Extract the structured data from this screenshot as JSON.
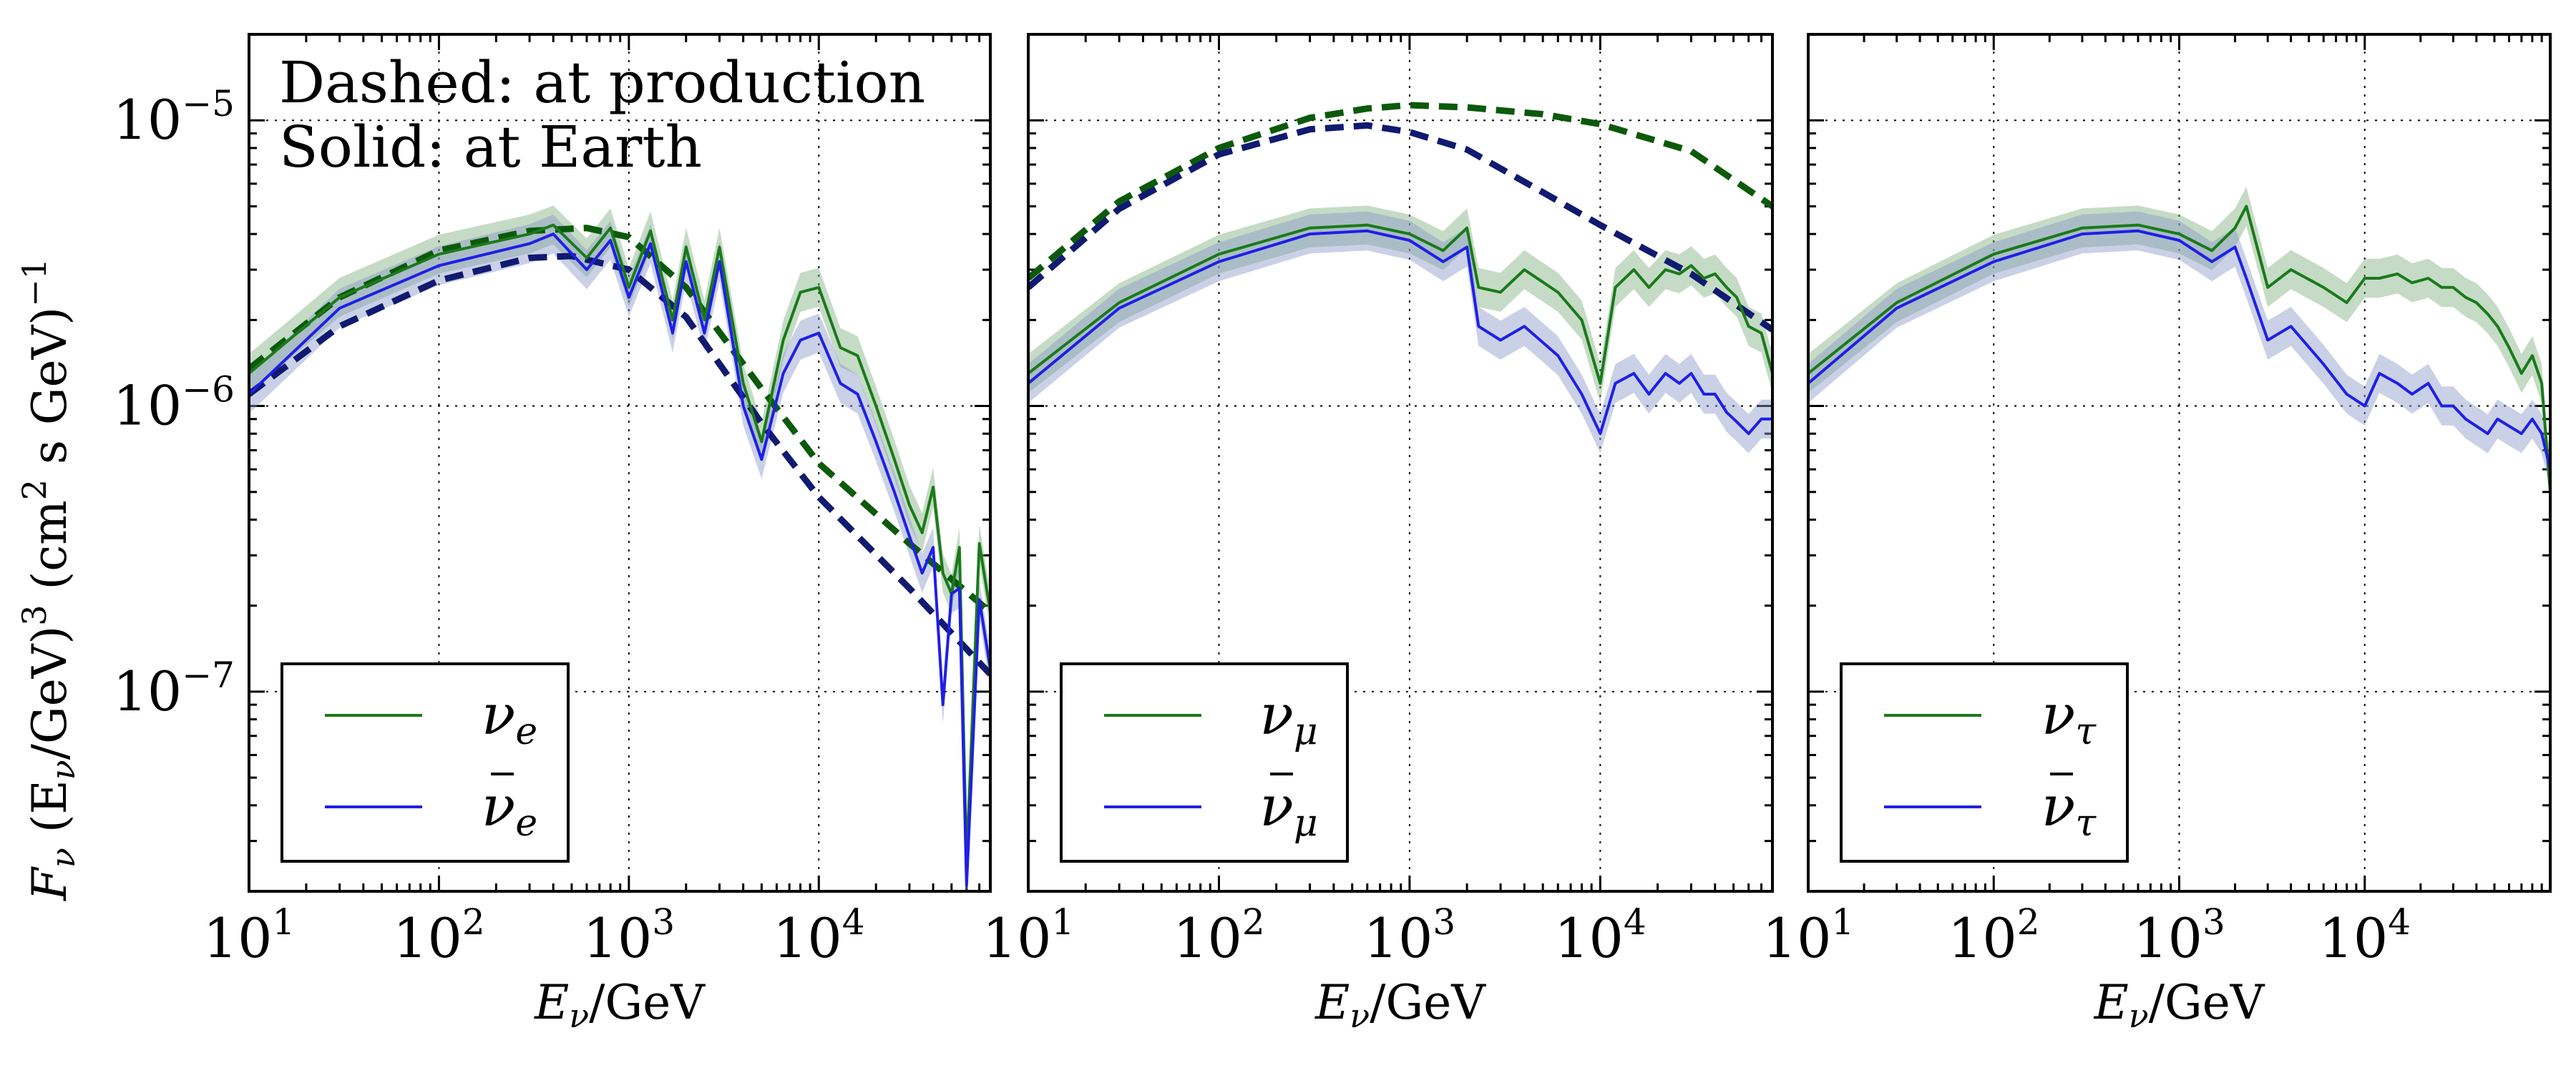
{
  "figure": {
    "ylabel_parts": {
      "f": "F",
      "f_sub": "ν",
      "open": " (E",
      "e_sub": "ν",
      "mid": "/GeV)",
      "cube": "3",
      "unit": " (cm",
      "sq": "2",
      "unit_end": " s GeV)",
      "inv": "−1"
    },
    "annotation_line1": "Dashed: at production",
    "annotation_line2": "Solid: at Earth",
    "colors": {
      "nu": "#1a7a1a",
      "nubar": "#1f1fe6",
      "nu_dashed": "#0b5a0b",
      "nubar_dashed": "#101a70",
      "band_nu": "#7fb07f",
      "band_nubar": "#8a9ac8"
    }
  },
  "chart_data": [
    {
      "type": "line",
      "panel": "electron",
      "xscale": "log",
      "yscale": "log",
      "xlim": [
        10,
        80000
      ],
      "ylim": [
        2e-08,
        2e-05
      ],
      "x_ticks": [
        {
          "base": "10",
          "exp": "1"
        },
        {
          "base": "10",
          "exp": "2"
        },
        {
          "base": "10",
          "exp": "3"
        },
        {
          "base": "10",
          "exp": "4"
        }
      ],
      "y_ticks": [
        {
          "base": "10",
          "exp": "−5"
        },
        {
          "base": "10",
          "exp": "−6"
        },
        {
          "base": "10",
          "exp": "−7"
        }
      ],
      "xlabel": {
        "e": "E",
        "sub": "ν",
        "unit": "/GeV"
      },
      "grid": true,
      "legend": {
        "location": "lower-left",
        "entries": [
          {
            "symbol": "ν",
            "sub": "e",
            "bar": false
          },
          {
            "symbol": "ν",
            "sub": "e",
            "bar": true
          }
        ]
      },
      "series": [
        {
          "name": "nu_e at production",
          "style": "dashed",
          "color_key": "nu_dashed",
          "x": [
            10,
            30,
            100,
            300,
            600,
            1000,
            2000,
            5000,
            10000,
            30000,
            80000
          ],
          "y": [
            1.35e-06,
            2.4e-06,
            3.5e-06,
            4.1e-06,
            4.2e-06,
            3.9e-06,
            2.6e-06,
            1.15e-06,
            6.3e-07,
            3.3e-07,
            1.9e-07
          ]
        },
        {
          "name": "nubar_e at production",
          "style": "dashed",
          "color_key": "nubar_dashed",
          "x": [
            10,
            30,
            100,
            300,
            500,
            1000,
            2000,
            5000,
            10000,
            30000,
            80000
          ],
          "y": [
            1.1e-06,
            1.9e-06,
            2.75e-06,
            3.3e-06,
            3.35e-06,
            3e-06,
            2.05e-06,
            8.7e-07,
            4.8e-07,
            2.3e-07,
            1.15e-07
          ]
        },
        {
          "name": "nu_e at Earth",
          "style": "solid",
          "color_key": "nu",
          "x": [
            10,
            30,
            100,
            300,
            400,
            600,
            800,
            1000,
            1300,
            1700,
            2000,
            2500,
            3000,
            4000,
            5000,
            6500,
            8000,
            10000,
            13000,
            16000,
            20000,
            25000,
            30000,
            35000,
            40000,
            45000,
            50000,
            55000,
            60000,
            70000,
            80000
          ],
          "y": [
            1.3e-06,
            2.4e-06,
            3.4e-06,
            4e-06,
            4.3e-06,
            3.3e-06,
            4.2e-06,
            2.6e-06,
            4.1e-06,
            2e-06,
            3.6e-06,
            2e-06,
            3.6e-06,
            1.2e-06,
            7.5e-07,
            1.7e-06,
            2.5e-06,
            2.6e-06,
            1.6e-06,
            1.5e-06,
            1e-06,
            6.5e-07,
            4.5e-07,
            3.6e-07,
            5.2e-07,
            2.6e-07,
            2.2e-07,
            3.2e-07,
            2.5e-08,
            3.3e-07,
            1.9e-07
          ]
        },
        {
          "name": "nubar_e at Earth",
          "style": "solid",
          "color_key": "nubar",
          "x": [
            10,
            30,
            100,
            300,
            400,
            600,
            800,
            1000,
            1300,
            1700,
            2000,
            2500,
            3000,
            4000,
            5000,
            6500,
            8000,
            10000,
            13000,
            16000,
            20000,
            25000,
            30000,
            35000,
            40000,
            45000,
            50000,
            55000,
            60000,
            70000,
            80000
          ],
          "y": [
            1.1e-06,
            2.2e-06,
            3.1e-06,
            3.7e-06,
            4e-06,
            3e-06,
            3.8e-06,
            2.4e-06,
            3.7e-06,
            1.8e-06,
            3.2e-06,
            1.8e-06,
            3.2e-06,
            1e-06,
            6.5e-07,
            1.3e-06,
            1.7e-06,
            1.8e-06,
            1.2e-06,
            1.1e-06,
            7.5e-07,
            5e-07,
            3.5e-07,
            2.6e-07,
            3.2e-07,
            9e-08,
            2.2e-07,
            2.3e-07,
            2.1e-08,
            2.1e-07,
            1.2e-07
          ]
        }
      ]
    },
    {
      "type": "line",
      "panel": "muon",
      "xscale": "log",
      "yscale": "log",
      "xlim": [
        10,
        80000
      ],
      "ylim": [
        2e-08,
        2e-05
      ],
      "x_ticks": [
        {
          "base": "10",
          "exp": "1"
        },
        {
          "base": "10",
          "exp": "2"
        },
        {
          "base": "10",
          "exp": "3"
        },
        {
          "base": "10",
          "exp": "4"
        }
      ],
      "y_ticks": [],
      "xlabel": {
        "e": "E",
        "sub": "ν",
        "unit": "/GeV"
      },
      "grid": true,
      "legend": {
        "location": "lower-left",
        "entries": [
          {
            "symbol": "ν",
            "sub": "μ",
            "bar": false
          },
          {
            "symbol": "ν",
            "sub": "μ",
            "bar": true
          }
        ]
      },
      "series": [
        {
          "name": "nu_mu at production",
          "style": "dashed",
          "color_key": "nu_dashed",
          "x": [
            10,
            30,
            100,
            300,
            600,
            1000,
            2000,
            5000,
            10000,
            30000,
            80000
          ],
          "y": [
            2.8e-06,
            5.2e-06,
            8e-06,
            1.02e-05,
            1.1e-05,
            1.13e-05,
            1.11e-05,
            1.05e-05,
            9.7e-06,
            7.8e-06,
            5e-06
          ]
        },
        {
          "name": "nubar_mu at production",
          "style": "dashed",
          "color_key": "nubar_dashed",
          "x": [
            10,
            30,
            100,
            300,
            600,
            1000,
            2000,
            5000,
            10000,
            30000,
            80000
          ],
          "y": [
            2.6e-06,
            4.9e-06,
            7.6e-06,
            9.3e-06,
            9.6e-06,
            9.1e-06,
            7.9e-06,
            5.6e-06,
            4.3e-06,
            2.9e-06,
            1.85e-06
          ]
        },
        {
          "name": "nu_mu at Earth",
          "style": "solid",
          "color_key": "nu",
          "x": [
            10,
            30,
            100,
            300,
            600,
            1000,
            1500,
            2000,
            2300,
            3000,
            4000,
            6000,
            8000,
            10000,
            12000,
            15000,
            18000,
            22000,
            26000,
            30000,
            35000,
            40000,
            46000,
            52000,
            60000,
            70000,
            80000
          ],
          "y": [
            1.3e-06,
            2.3e-06,
            3.4e-06,
            4.2e-06,
            4.3e-06,
            4e-06,
            3.5e-06,
            4.2e-06,
            2.6e-06,
            2.5e-06,
            3e-06,
            2.5e-06,
            2e-06,
            1.2e-06,
            2.6e-06,
            3e-06,
            2.6e-06,
            3e-06,
            2.9e-06,
            3.1e-06,
            2.8e-06,
            2.9e-06,
            2.6e-06,
            2.4e-06,
            1.9e-06,
            1.8e-06,
            1.3e-06
          ]
        },
        {
          "name": "nubar_mu at Earth",
          "style": "solid",
          "color_key": "nubar",
          "x": [
            10,
            30,
            100,
            300,
            600,
            1000,
            1500,
            2000,
            2300,
            3000,
            4000,
            6000,
            8000,
            10000,
            12000,
            15000,
            18000,
            22000,
            26000,
            30000,
            35000,
            40000,
            46000,
            52000,
            60000,
            70000,
            80000
          ],
          "y": [
            1.2e-06,
            2.2e-06,
            3.2e-06,
            4e-06,
            4.1e-06,
            3.8e-06,
            3.2e-06,
            3.6e-06,
            1.9e-06,
            1.7e-06,
            1.9e-06,
            1.5e-06,
            1.1e-06,
            8e-07,
            1.2e-06,
            1.3e-06,
            1.1e-06,
            1.3e-06,
            1.2e-06,
            1.3e-06,
            1.1e-06,
            1.1e-06,
            9.5e-07,
            8.8e-07,
            8e-07,
            9e-07,
            9e-07
          ]
        }
      ]
    },
    {
      "type": "line",
      "panel": "tau",
      "xscale": "log",
      "yscale": "log",
      "xlim": [
        10,
        100000
      ],
      "ylim": [
        2e-08,
        2e-05
      ],
      "x_ticks": [
        {
          "base": "10",
          "exp": "1"
        },
        {
          "base": "10",
          "exp": "2"
        },
        {
          "base": "10",
          "exp": "3"
        },
        {
          "base": "10",
          "exp": "4"
        }
      ],
      "y_ticks": [],
      "xlabel": {
        "e": "E",
        "sub": "ν",
        "unit": "/GeV"
      },
      "grid": true,
      "legend": {
        "location": "lower-left",
        "entries": [
          {
            "symbol": "ν",
            "sub": "τ",
            "bar": false
          },
          {
            "symbol": "ν",
            "sub": "τ",
            "bar": true
          }
        ]
      },
      "series": [
        {
          "name": "nu_tau at Earth",
          "style": "solid",
          "color_key": "nu",
          "x": [
            10,
            30,
            100,
            300,
            600,
            1000,
            1500,
            2000,
            2300,
            3000,
            4000,
            6000,
            8000,
            10000,
            12000,
            15000,
            18000,
            22000,
            26000,
            30000,
            35000,
            40000,
            46000,
            52000,
            60000,
            70000,
            80000,
            90000,
            100000
          ],
          "y": [
            1.3e-06,
            2.3e-06,
            3.4e-06,
            4.2e-06,
            4.3e-06,
            4e-06,
            3.5e-06,
            4.2e-06,
            5e-06,
            2.6e-06,
            3e-06,
            2.6e-06,
            2.3e-06,
            2.8e-06,
            2.8e-06,
            2.9e-06,
            2.7e-06,
            2.8e-06,
            2.6e-06,
            2.6e-06,
            2.4e-06,
            2.3e-06,
            2.1e-06,
            1.9e-06,
            1.6e-06,
            1.3e-06,
            1.5e-06,
            1.2e-06,
            5e-07
          ]
        },
        {
          "name": "nubar_tau at Earth",
          "style": "solid",
          "color_key": "nubar",
          "x": [
            10,
            30,
            100,
            300,
            600,
            1000,
            1500,
            2000,
            2300,
            3000,
            4000,
            6000,
            8000,
            10000,
            12000,
            15000,
            18000,
            22000,
            26000,
            30000,
            35000,
            40000,
            46000,
            52000,
            60000,
            70000,
            80000,
            90000,
            100000
          ],
          "y": [
            1.2e-06,
            2.2e-06,
            3.2e-06,
            4e-06,
            4.1e-06,
            3.8e-06,
            3.2e-06,
            3.6e-06,
            2.8e-06,
            1.7e-06,
            1.9e-06,
            1.4e-06,
            1.1e-06,
            1e-06,
            1.3e-06,
            1.2e-06,
            1.1e-06,
            1.2e-06,
            1e-06,
            1e-06,
            9e-07,
            8.5e-07,
            8e-07,
            9e-07,
            8.5e-07,
            8e-07,
            9e-07,
            8e-07,
            6e-07
          ]
        }
      ]
    }
  ]
}
